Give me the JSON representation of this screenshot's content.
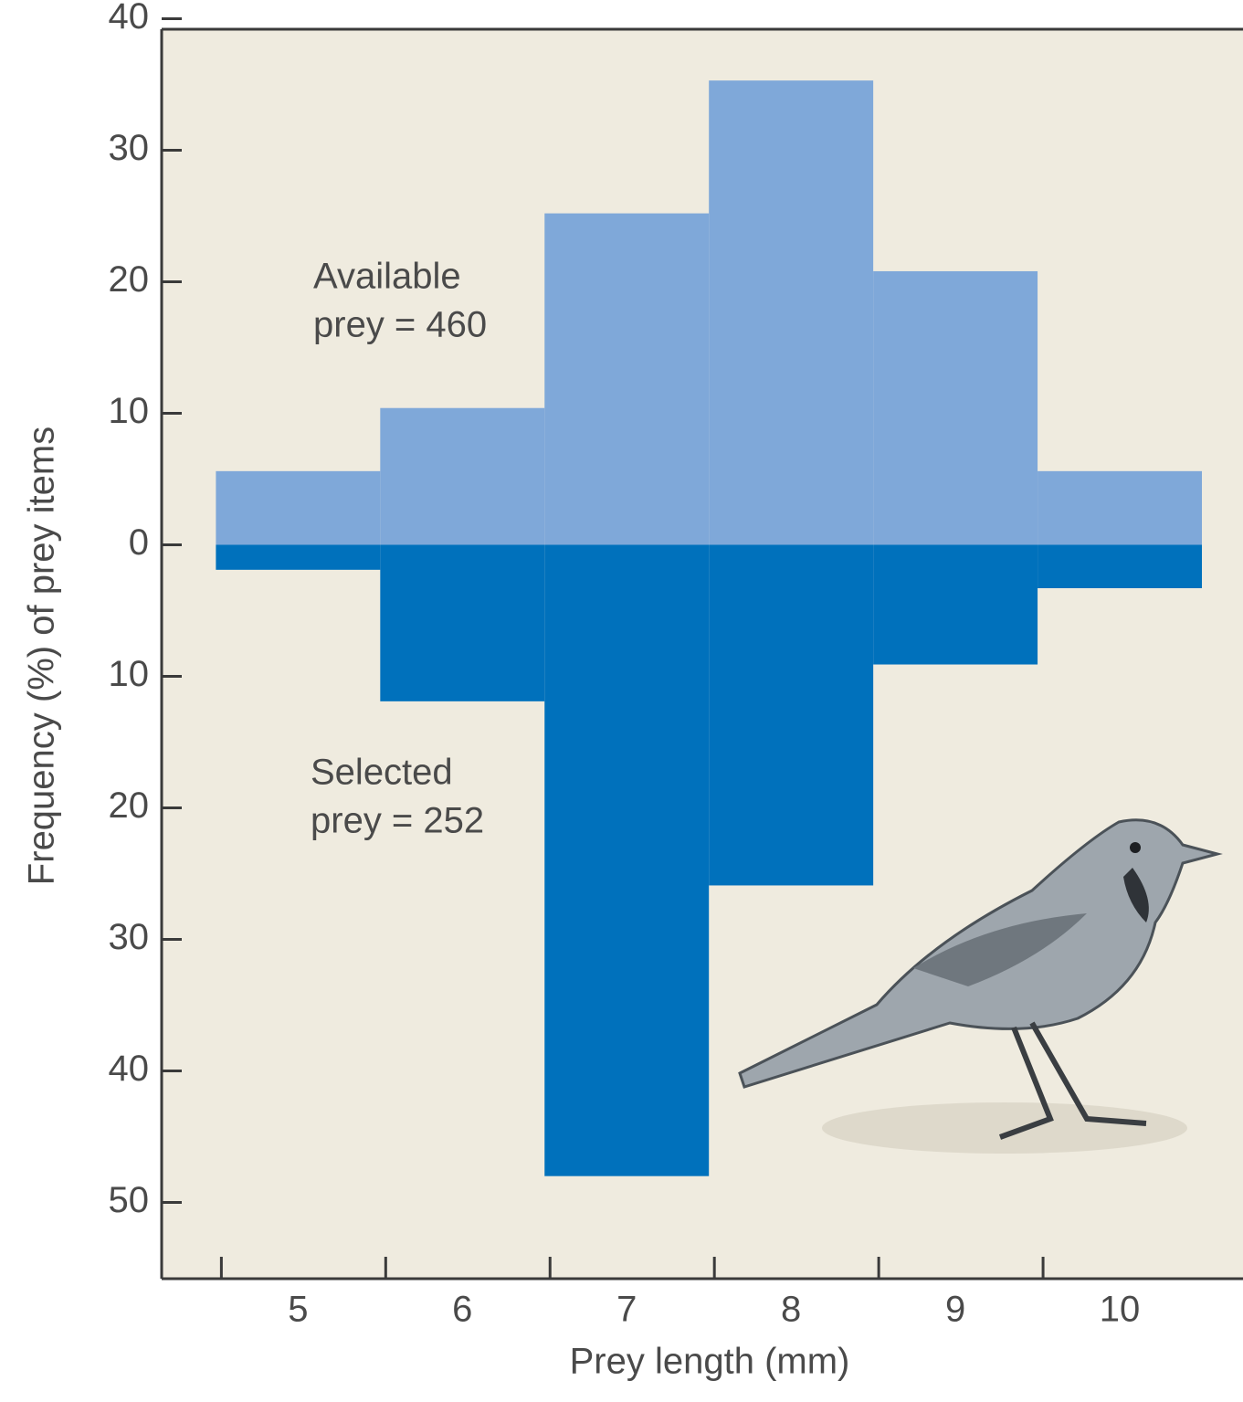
{
  "chart_data": {
    "type": "mirrored-histogram",
    "x_label": "Prey length (mm)",
    "y_label": "Frequency (%) of prey items",
    "bins": [
      4.5,
      5.5,
      6.5,
      7.5,
      8.5,
      9.5,
      10.5
    ],
    "xlim": [
      4.17,
      10.75
    ],
    "xticks": [
      5,
      6,
      7,
      8,
      9,
      10
    ],
    "ylim": [
      -55.8,
      39.2
    ],
    "yticks": [
      {
        "value": -50,
        "label": "50"
      },
      {
        "value": -40,
        "label": "40"
      },
      {
        "value": -30,
        "label": "30"
      },
      {
        "value": -20,
        "label": "20"
      },
      {
        "value": -10,
        "label": "10"
      },
      0,
      10,
      20,
      30,
      40
    ],
    "series": [
      {
        "color": "#7fa8d9",
        "values": [
          5.6,
          10.4,
          25.2,
          35.3,
          20.8,
          5.6
        ]
      },
      {
        "color": "#0071bc",
        "values": [
          -1.9,
          -11.9,
          -48.0,
          -25.9,
          -9.1,
          -3.3
        ]
      }
    ],
    "annotations": [
      [
        "Available",
        "prey = 460"
      ],
      [
        "Selected",
        "prey = 252"
      ]
    ],
    "background": "#efebdf"
  }
}
